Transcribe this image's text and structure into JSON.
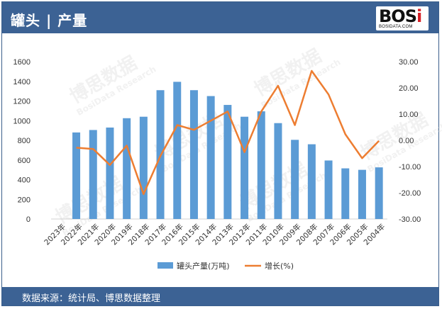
{
  "header": {
    "title": "罐头 | 产量"
  },
  "logo": {
    "brand_main": "BOS",
    "brand_accent": "i",
    "url": "BOSIDATA.COM"
  },
  "footer": {
    "source": "数据来源：统计局、博思数据整理"
  },
  "watermark": {
    "cn": "博思数据",
    "en": "BosiData Research"
  },
  "colors": {
    "bar": "#5b9bd5",
    "line": "#ed7d31",
    "header_bg": "#3c6294"
  },
  "chart_data": {
    "type": "bar+line",
    "categories": [
      "2023年",
      "2022年",
      "2021年",
      "2020年",
      "2019年",
      "2018年",
      "2017年",
      "2016年",
      "2015年",
      "2014年",
      "2013年",
      "2012年",
      "2011年",
      "2010年",
      "2009年",
      "2008年",
      "2007年",
      "2006年",
      "2005年",
      "2004年"
    ],
    "series": [
      {
        "name": "罐头产量(万吨)",
        "type": "bar",
        "axis": "left",
        "values": [
          null,
          880,
          905,
          930,
          1025,
          1040,
          1310,
          1395,
          1310,
          1250,
          1160,
          1040,
          1095,
          975,
          805,
          760,
          595,
          515,
          500,
          525
        ]
      },
      {
        "name": "增长(%)",
        "type": "line",
        "axis": "right",
        "values": [
          null,
          -2.8,
          -3.3,
          -9.4,
          -2.0,
          -20.5,
          -6.0,
          5.8,
          4.0,
          7.5,
          11.0,
          -4.5,
          11.0,
          20.8,
          5.8,
          26.5,
          17.5,
          2.3,
          -6.8,
          -0.2
        ]
      }
    ],
    "y_left": {
      "ylim": [
        0,
        1600
      ],
      "ticks": [
        "0",
        "200",
        "400",
        "600",
        "800",
        "1000",
        "1200",
        "1400",
        "1600"
      ]
    },
    "y_right": {
      "ylim": [
        -30,
        30
      ],
      "ticks": [
        "-30.00",
        "-20.00",
        "-10.00",
        "0.00",
        "10.00",
        "20.00",
        "30.00"
      ]
    },
    "grid": false,
    "legend": "bottom-center"
  }
}
